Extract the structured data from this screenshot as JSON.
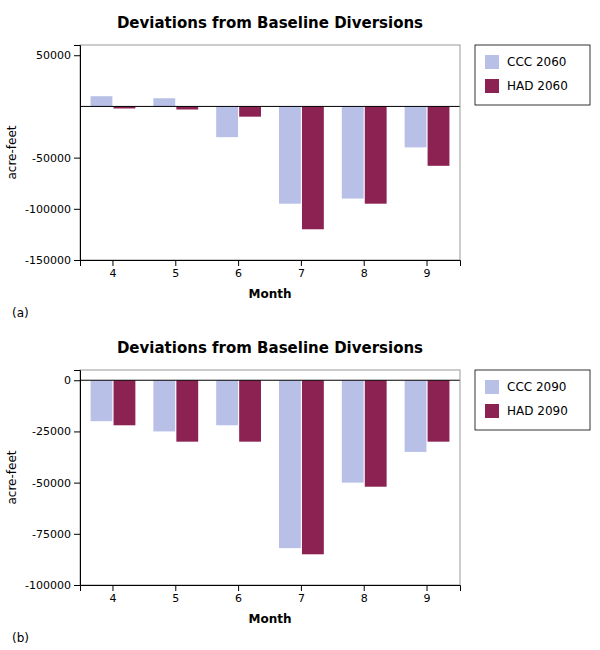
{
  "chart_data": [
    {
      "type": "bar",
      "title": "Deviations from Baseline Diversions",
      "x_label": "Month",
      "y_label": "acre-feet",
      "categories": [
        "4",
        "5",
        "6",
        "7",
        "8",
        "9"
      ],
      "series": [
        {
          "name": "CCC 2060",
          "color": "#b8c0e8",
          "values": [
            10000,
            8000,
            -30000,
            -95000,
            -90000,
            -40000
          ]
        },
        {
          "name": "HAD 2060",
          "color": "#8b2252",
          "values": [
            -2000,
            -3000,
            -10000,
            -120000,
            -95000,
            -58000
          ]
        }
      ],
      "ylim": [
        -150000,
        60000
      ],
      "yticks": [
        50000,
        -50000,
        -100000,
        -150000
      ],
      "grid": false,
      "legend": "right",
      "annotations": [
        "(a)"
      ]
    },
    {
      "type": "bar",
      "title": "Deviations from Baseline Diversions",
      "x_label": "Month",
      "y_label": "acre-feet",
      "categories": [
        "4",
        "5",
        "6",
        "7",
        "8",
        "9"
      ],
      "series": [
        {
          "name": "CCC 2090",
          "color": "#b8c0e8",
          "values": [
            -20000,
            -25000,
            -22000,
            -82000,
            -50000,
            -35000
          ]
        },
        {
          "name": "HAD 2090",
          "color": "#8b2252",
          "values": [
            -22000,
            -30000,
            -30000,
            -85000,
            -52000,
            -30000
          ]
        }
      ],
      "ylim": [
        -100000,
        5000
      ],
      "yticks": [
        0,
        -25000,
        -50000,
        -75000,
        -100000
      ],
      "grid": false,
      "legend": "right",
      "annotations": [
        "(b)"
      ]
    }
  ]
}
